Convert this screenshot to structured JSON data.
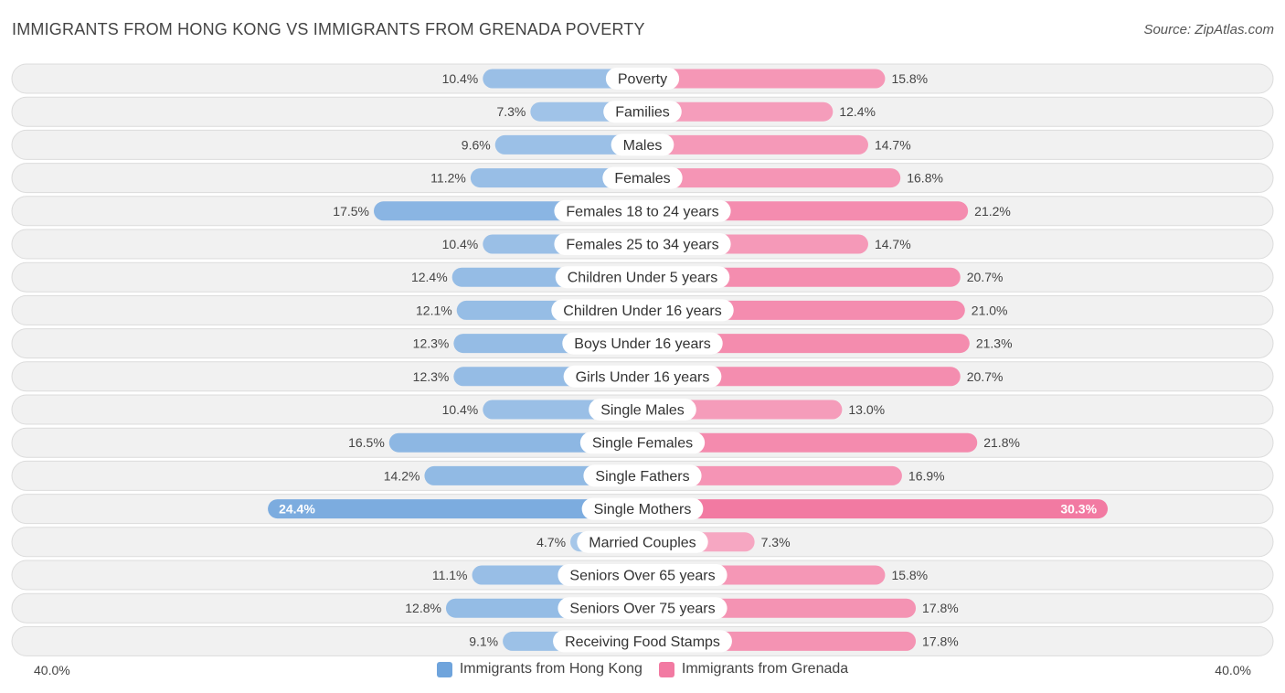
{
  "header": {
    "title": "IMMIGRANTS FROM HONG KONG VS IMMIGRANTS FROM GRENADA POVERTY",
    "source": "Source: ZipAtlas.com"
  },
  "axis": {
    "left_label": "40.0%",
    "right_label": "40.0%"
  },
  "legend": {
    "left": {
      "label": "Immigrants from Hong Kong",
      "color": "#6fa4dc"
    },
    "right": {
      "label": "Immigrants from Grenada",
      "color": "#f27aa2"
    }
  },
  "chart_data": {
    "type": "bar",
    "orientation": "diverging-horizontal",
    "title": "IMMIGRANTS FROM HONG KONG VS IMMIGRANTS FROM GRENADA POVERTY",
    "xlim": [
      -40,
      40
    ],
    "unit": "%",
    "categories": [
      "Poverty",
      "Families",
      "Males",
      "Females",
      "Females 18 to 24 years",
      "Females 25 to 34 years",
      "Children Under 5 years",
      "Children Under 16 years",
      "Boys Under 16 years",
      "Girls Under 16 years",
      "Single Males",
      "Single Females",
      "Single Fathers",
      "Single Mothers",
      "Married Couples",
      "Seniors Over 65 years",
      "Seniors Over 75 years",
      "Receiving Food Stamps"
    ],
    "series": [
      {
        "name": "Immigrants from Hong Kong",
        "color": "#6fa4dc",
        "values": [
          10.4,
          7.3,
          9.6,
          11.2,
          17.5,
          10.4,
          12.4,
          12.1,
          12.3,
          12.3,
          10.4,
          16.5,
          14.2,
          24.4,
          4.7,
          11.1,
          12.8,
          9.1
        ],
        "labels": [
          "10.4%",
          "7.3%",
          "9.6%",
          "11.2%",
          "17.5%",
          "10.4%",
          "12.4%",
          "12.1%",
          "12.3%",
          "12.3%",
          "10.4%",
          "16.5%",
          "14.2%",
          "24.4%",
          "4.7%",
          "11.1%",
          "12.8%",
          "9.1%"
        ]
      },
      {
        "name": "Immigrants from Grenada",
        "color": "#f27aa2",
        "values": [
          15.8,
          12.4,
          14.7,
          16.8,
          21.2,
          14.7,
          20.7,
          21.0,
          21.3,
          20.7,
          13.0,
          21.8,
          16.9,
          30.3,
          7.3,
          15.8,
          17.8,
          17.8
        ],
        "labels": [
          "15.8%",
          "12.4%",
          "14.7%",
          "16.8%",
          "21.2%",
          "14.7%",
          "20.7%",
          "21.0%",
          "21.3%",
          "20.7%",
          "13.0%",
          "21.8%",
          "16.9%",
          "30.3%",
          "7.3%",
          "15.8%",
          "17.8%",
          "17.8%"
        ]
      }
    ]
  }
}
